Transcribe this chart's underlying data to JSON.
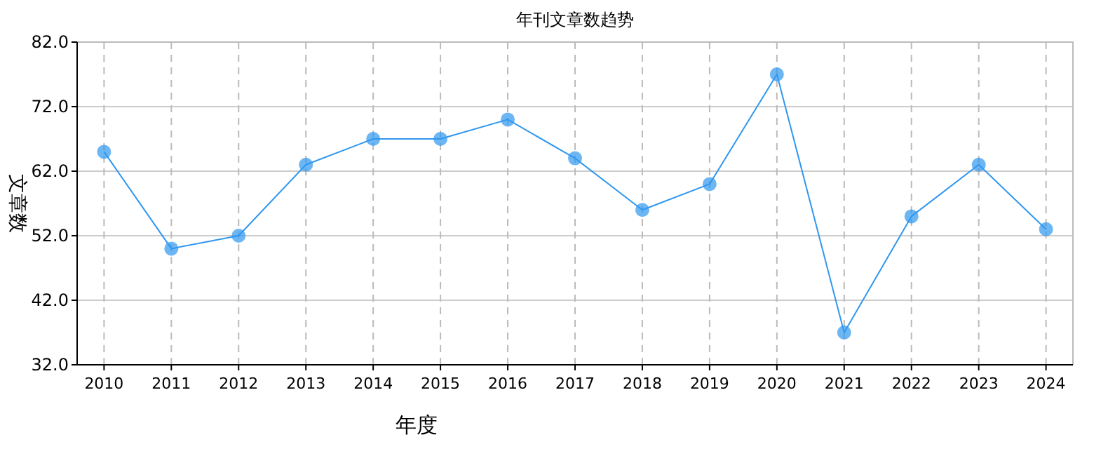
{
  "chart_data": {
    "type": "line",
    "title": "年刊文章数趋势",
    "xlabel": "年度",
    "ylabel": "文章数",
    "categories": [
      "2010",
      "2011",
      "2012",
      "2013",
      "2014",
      "2015",
      "2016",
      "2017",
      "2018",
      "2019",
      "2020",
      "2021",
      "2022",
      "2023",
      "2024"
    ],
    "series": [
      {
        "color": "#2f97f0",
        "values": [
          65,
          50,
          52,
          63,
          67,
          67,
          70,
          64,
          56,
          60,
          77,
          37,
          55,
          63,
          53
        ]
      }
    ],
    "ylim": [
      32,
      82
    ],
    "yticks": [
      {
        "value": 32,
        "label": "32.0"
      },
      {
        "value": 42,
        "label": "42.0"
      },
      {
        "value": 52,
        "label": "52.0"
      },
      {
        "value": 62,
        "label": "62.0"
      },
      {
        "value": 72,
        "label": "72.0"
      },
      {
        "value": 82,
        "label": "82.0"
      }
    ],
    "grid": true,
    "marker": "circle",
    "line_style": "solid"
  }
}
